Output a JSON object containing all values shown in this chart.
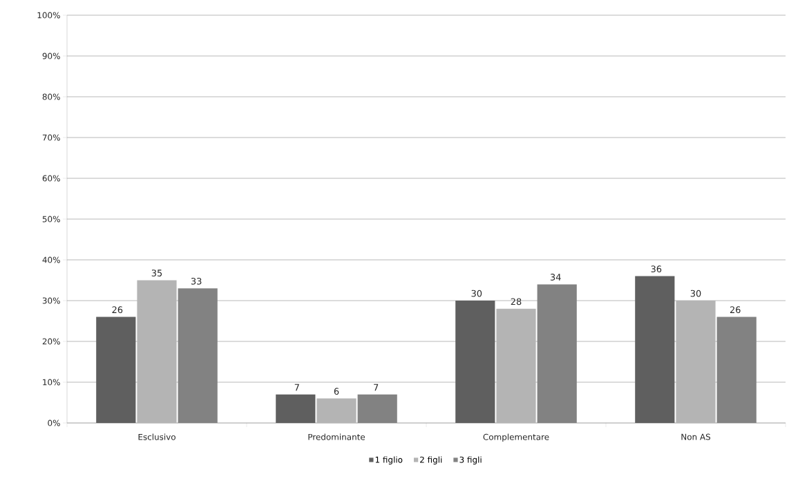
{
  "chart_data": {
    "type": "bar",
    "categories": [
      "Esclusivo",
      "Predominante",
      "Complementare",
      "Non AS"
    ],
    "series": [
      {
        "name": "1 figlio",
        "color": "#5f5f5f",
        "values": [
          26,
          7,
          30,
          36
        ]
      },
      {
        "name": "2 figli",
        "color": "#b4b4b4",
        "values": [
          35,
          6,
          28,
          30
        ]
      },
      {
        "name": "3 figli",
        "color": "#828282",
        "values": [
          33,
          7,
          34,
          26
        ]
      }
    ],
    "ylim": [
      0,
      100
    ],
    "yticks": [
      {
        "value": 0,
        "label": "0%"
      },
      {
        "value": 10,
        "label": "10%"
      },
      {
        "value": 20,
        "label": "20%"
      },
      {
        "value": 30,
        "label": "30%"
      },
      {
        "value": 40,
        "label": "40%"
      },
      {
        "value": 50,
        "label": "50%"
      },
      {
        "value": 60,
        "label": "60%"
      },
      {
        "value": 70,
        "label": "70%"
      },
      {
        "value": 80,
        "label": "80%"
      },
      {
        "value": 90,
        "label": "90%"
      },
      {
        "value": 100,
        "label": "100%"
      }
    ],
    "grid": "y",
    "legend": "bottom",
    "data_labels": true
  }
}
